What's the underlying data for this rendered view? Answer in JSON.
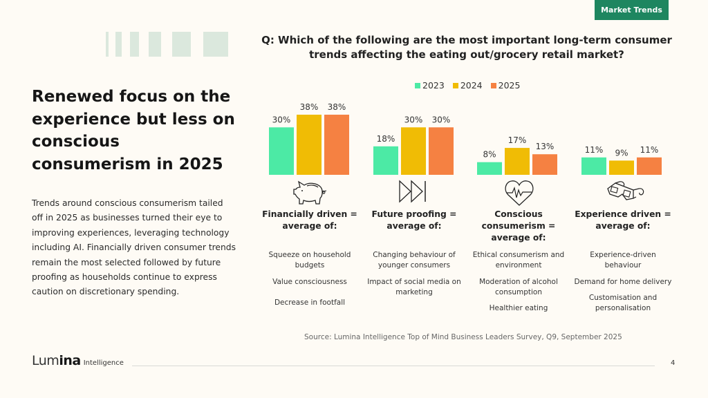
{
  "tag": "Market Trends",
  "title": "Renewed focus on the experience but less on conscious consumerism in 2025",
  "body_text": "Trends around conscious consumerism tailed off in 2025 as businesses turned their eye to improving experiences, leveraging technology including AI.  Financially driven consumer trends remain the most selected followed by future proofing as households continue to express caution on discretionary spending.",
  "colors": {
    "accent": "#1e8660",
    "series_2023": "#4ceaa5",
    "series_2024": "#f0bc05",
    "series_2025": "#f58142",
    "deco": "#dbe8dd"
  },
  "groups": [
    {
      "label": "Financially driven = average of:",
      "icon": "piggy-bank-icon",
      "items": [
        "Squeeze on household budgets",
        "Value consciousness",
        "Decrease in footfall"
      ]
    },
    {
      "label": "Future proofing = average of:",
      "icon": "fast-forward-icon",
      "items": [
        "Changing behaviour of younger consumers",
        "Impact of social media on marketing"
      ]
    },
    {
      "label": "Conscious consumerism = average of:",
      "icon": "heart-pulse-icon",
      "items": [
        "Ethical consumerism and environment",
        "Moderation of alcohol consumption",
        "Healthier eating"
      ]
    },
    {
      "label": "Experience driven = average of:",
      "icon": "3d-glasses-icon",
      "items": [
        "Experience-driven behaviour",
        "Demand for home delivery",
        "Customisation and personalisation"
      ]
    }
  ],
  "source": "Source: Lumina Intelligence Top of Mind Business Leaders Survey, Q9, September 2025",
  "page_number": "4",
  "logo": {
    "main_light": "Lum",
    "main_bold": "ina",
    "sub": "Intelligence"
  },
  "chart_data": {
    "type": "bar",
    "title": "Q: Which of the following are the most important long-term consumer trends affecting the eating out/grocery retail market?",
    "categories": [
      "Financially driven",
      "Future proofing",
      "Conscious consumerism",
      "Experience driven"
    ],
    "series": [
      {
        "name": "2023",
        "values": [
          30,
          18,
          8,
          11
        ],
        "color": "#4ceaa5"
      },
      {
        "name": "2024",
        "values": [
          38,
          30,
          17,
          9
        ],
        "color": "#f0bc05"
      },
      {
        "name": "2025",
        "values": [
          38,
          30,
          13,
          11
        ],
        "color": "#f58142"
      }
    ],
    "value_suffix": "%",
    "ylim": [
      0,
      40
    ],
    "grid": false,
    "legend": "top-center",
    "xlabel": "",
    "ylabel": ""
  }
}
